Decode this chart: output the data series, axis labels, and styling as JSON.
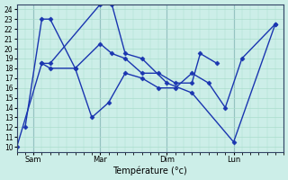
{
  "background_color": "#cceee8",
  "grid_color": "#aaddcc",
  "line_color": "#1a35b0",
  "marker_style": "D",
  "marker_size": 2.5,
  "xlabel": "Température (°c)",
  "ylim": [
    9.5,
    24.5
  ],
  "yticks": [
    10,
    11,
    12,
    13,
    14,
    15,
    16,
    17,
    18,
    19,
    20,
    21,
    22,
    23,
    24
  ],
  "xtick_labels": [
    "Sam",
    "Mar",
    "Dim",
    "Lun"
  ],
  "xtick_positions": [
    1,
    5,
    9,
    13
  ],
  "vline_positions": [
    1,
    5,
    9,
    13
  ],
  "xlim": [
    0,
    16
  ],
  "series": [
    {
      "x": [
        0,
        1.5,
        2.0,
        5.0,
        5.7,
        6.5,
        7.5,
        9.0,
        10.5,
        13.0,
        15.5
      ],
      "y": [
        10,
        18.5,
        18.5,
        24.5,
        24.5,
        19.5,
        19.0,
        16.5,
        15.5,
        10.5,
        22.5
      ]
    },
    {
      "x": [
        0.5,
        1.5,
        2.0,
        3.5,
        4.5,
        5.5,
        6.5,
        7.5,
        8.5,
        9.5,
        10.5,
        11.5,
        12.5,
        13.5,
        15.5
      ],
      "y": [
        12,
        23,
        23,
        18,
        13,
        14.5,
        17.5,
        17.0,
        16.0,
        16.0,
        17.5,
        16.5,
        14.0,
        19.0,
        22.5
      ]
    },
    {
      "x": [
        1.5,
        2.0,
        3.5,
        5.0,
        5.7,
        6.5,
        7.5,
        8.5,
        9.5,
        10.5,
        11.0,
        12.0
      ],
      "y": [
        18.5,
        18.0,
        18.0,
        20.5,
        19.5,
        19.0,
        17.5,
        17.5,
        16.5,
        16.5,
        19.5,
        18.5
      ]
    }
  ]
}
